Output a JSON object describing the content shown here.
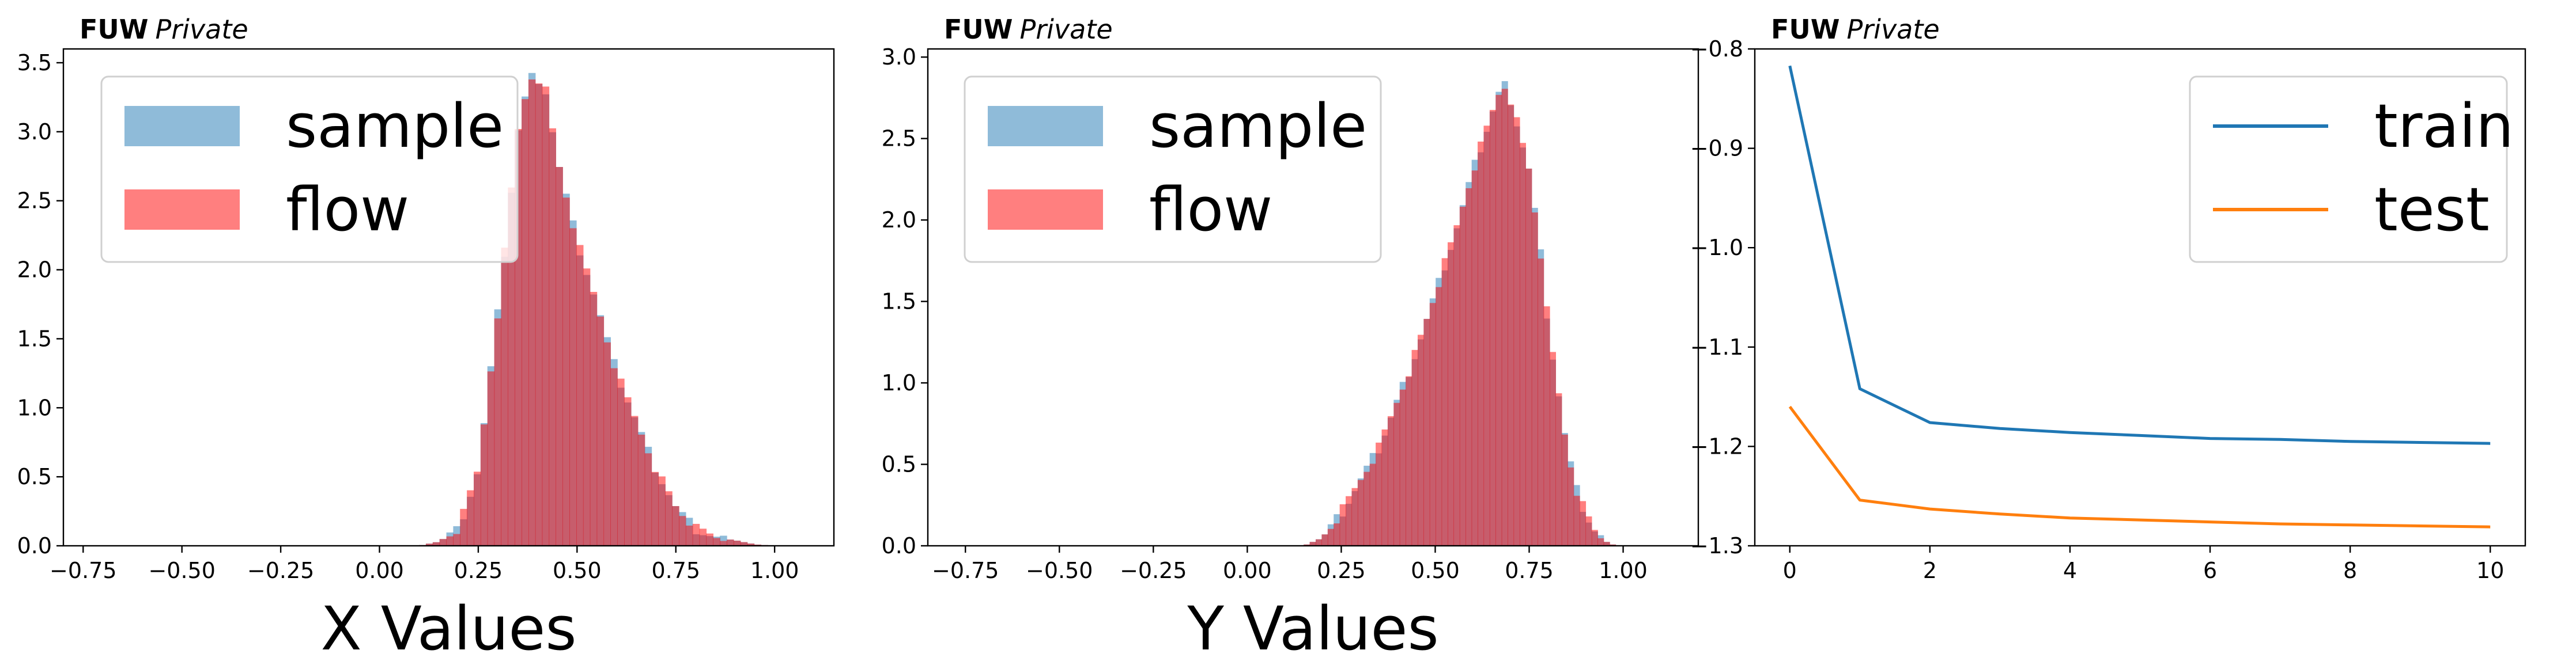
{
  "chart_data": [
    {
      "type": "histogram",
      "tag_bold": "FUW",
      "tag_italic": "Private",
      "xlabel": "X Values",
      "ylabel": "",
      "xlim": [
        -0.8,
        1.15
      ],
      "ylim": [
        0,
        3.6
      ],
      "xticks": [
        -0.75,
        -0.5,
        -0.25,
        0.0,
        0.25,
        0.5,
        0.75,
        1.0
      ],
      "xtick_labels": [
        "−0.75",
        "−0.50",
        "−0.25",
        "0.00",
        "0.25",
        "0.50",
        "0.75",
        "1.00"
      ],
      "yticks": [
        0.0,
        0.5,
        1.0,
        1.5,
        2.0,
        2.5,
        3.0,
        3.5
      ],
      "ytick_labels": [
        "0.0",
        "0.5",
        "1.0",
        "1.5",
        "2.0",
        "2.5",
        "3.0",
        "3.5"
      ],
      "legend_position": "top-left",
      "series": [
        {
          "name": "sample",
          "color": "#1f77b4",
          "alpha": 0.5
        },
        {
          "name": "flow",
          "color": "#ff0000",
          "alpha": 0.5
        }
      ],
      "density_curve_points": [
        [
          0.1,
          0.0
        ],
        [
          0.15,
          0.03
        ],
        [
          0.2,
          0.12
        ],
        [
          0.25,
          0.55
        ],
        [
          0.3,
          1.7
        ],
        [
          0.35,
          3.0
        ],
        [
          0.38,
          3.4
        ],
        [
          0.4,
          3.4
        ],
        [
          0.42,
          3.3
        ],
        [
          0.45,
          2.8
        ],
        [
          0.5,
          2.2
        ],
        [
          0.55,
          1.75
        ],
        [
          0.6,
          1.25
        ],
        [
          0.65,
          0.9
        ],
        [
          0.7,
          0.55
        ],
        [
          0.75,
          0.28
        ],
        [
          0.8,
          0.12
        ],
        [
          0.85,
          0.06
        ],
        [
          0.9,
          0.04
        ],
        [
          0.95,
          0.01
        ],
        [
          1.0,
          0.0
        ]
      ]
    },
    {
      "type": "histogram",
      "tag_bold": "FUW",
      "tag_italic": "Private",
      "xlabel": "Y Values",
      "ylabel": "",
      "xlim": [
        -0.85,
        1.2
      ],
      "ylim": [
        0,
        3.05
      ],
      "xticks": [
        -0.75,
        -0.5,
        -0.25,
        0.0,
        0.25,
        0.5,
        0.75,
        1.0
      ],
      "xtick_labels": [
        "−0.75",
        "−0.50",
        "−0.25",
        "0.00",
        "0.25",
        "0.50",
        "0.75",
        "1.00"
      ],
      "yticks": [
        0.0,
        0.5,
        1.0,
        1.5,
        2.0,
        2.5,
        3.0
      ],
      "ytick_labels": [
        "0.0",
        "0.5",
        "1.0",
        "1.5",
        "2.0",
        "2.5",
        "3.0"
      ],
      "legend_position": "top-left",
      "series": [
        {
          "name": "sample",
          "color": "#1f77b4",
          "alpha": 0.5
        },
        {
          "name": "flow",
          "color": "#ff0000",
          "alpha": 0.5
        }
      ],
      "density_curve_points": [
        [
          0.15,
          0.0
        ],
        [
          0.2,
          0.05
        ],
        [
          0.25,
          0.2
        ],
        [
          0.3,
          0.4
        ],
        [
          0.35,
          0.6
        ],
        [
          0.4,
          0.9
        ],
        [
          0.45,
          1.2
        ],
        [
          0.5,
          1.55
        ],
        [
          0.55,
          1.9
        ],
        [
          0.6,
          2.3
        ],
        [
          0.65,
          2.65
        ],
        [
          0.68,
          2.85
        ],
        [
          0.7,
          2.75
        ],
        [
          0.75,
          2.3
        ],
        [
          0.78,
          1.8
        ],
        [
          0.8,
          1.35
        ],
        [
          0.85,
          0.6
        ],
        [
          0.88,
          0.3
        ],
        [
          0.92,
          0.1
        ],
        [
          0.95,
          0.03
        ],
        [
          0.98,
          0.0
        ]
      ]
    },
    {
      "type": "line",
      "tag_bold": "FUW",
      "tag_italic": "Private",
      "xlabel": "",
      "ylabel": "",
      "xlim": [
        -0.5,
        10.5
      ],
      "ylim": [
        -1.3,
        -0.8
      ],
      "xticks": [
        0,
        2,
        4,
        6,
        8,
        10
      ],
      "xtick_labels": [
        "0",
        "2",
        "4",
        "6",
        "8",
        "10"
      ],
      "yticks": [
        -1.3,
        -1.2,
        -1.1,
        -1.0,
        -0.9,
        -0.8
      ],
      "ytick_labels": [
        "−1.3",
        "−1.2",
        "−1.1",
        "−1.0",
        "−0.9",
        "−0.8"
      ],
      "legend_position": "top-right",
      "x": [
        0,
        1,
        2,
        3,
        4,
        5,
        6,
        7,
        8,
        9,
        10
      ],
      "series": [
        {
          "name": "train",
          "color": "#1f77b4",
          "values": [
            -0.817,
            -1.142,
            -1.176,
            -1.182,
            -1.186,
            -1.189,
            -1.192,
            -1.193,
            -1.195,
            -1.196,
            -1.197
          ]
        },
        {
          "name": "test",
          "color": "#ff7f0e",
          "values": [
            -1.16,
            -1.254,
            -1.263,
            -1.268,
            -1.272,
            -1.274,
            -1.276,
            -1.278,
            -1.279,
            -1.28,
            -1.281
          ]
        }
      ]
    }
  ]
}
